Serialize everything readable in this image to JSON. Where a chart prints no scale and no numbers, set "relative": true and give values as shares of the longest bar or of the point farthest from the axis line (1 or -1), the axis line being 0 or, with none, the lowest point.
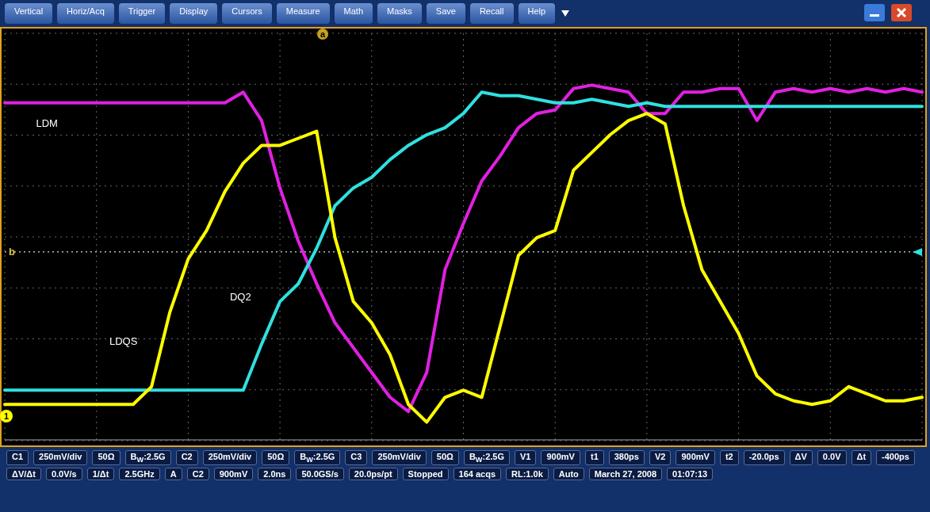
{
  "chart_data": {
    "type": "line",
    "relative": true,
    "grid": true,
    "marker": "none",
    "categories": [
      null,
      null,
      null,
      null,
      null,
      null,
      null,
      null,
      null,
      null,
      null,
      null,
      null,
      null,
      null,
      null,
      null,
      null,
      null,
      null,
      null,
      null,
      null,
      null,
      null,
      null,
      null,
      null,
      null,
      null,
      null,
      null,
      null,
      null,
      null,
      null,
      null,
      null,
      null,
      null,
      null,
      null,
      null,
      null,
      null,
      null,
      null,
      null,
      null,
      null,
      null
    ],
    "series": [
      {
        "name": "LDM",
        "color": "#e020e0",
        "values": [
          0.95,
          0.95,
          0.95,
          0.95,
          0.95,
          0.95,
          0.95,
          0.95,
          0.95,
          0.95,
          0.95,
          0.95,
          0.95,
          0.98,
          0.9,
          0.71,
          0.56,
          0.44,
          0.33,
          0.26,
          0.19,
          0.12,
          0.08,
          0.19,
          0.48,
          0.61,
          0.73,
          0.8,
          0.88,
          0.92,
          0.93,
          0.99,
          1.0,
          0.99,
          0.98,
          0.92,
          0.92,
          0.98,
          0.98,
          0.99,
          0.99,
          0.9,
          0.98,
          0.99,
          0.98,
          0.99,
          0.98,
          0.99,
          0.98,
          0.99,
          0.98
        ]
      },
      {
        "name": "DQ2",
        "color": "#30e0e0",
        "values": [
          0.14,
          0.14,
          0.14,
          0.14,
          0.14,
          0.14,
          0.14,
          0.14,
          0.14,
          0.14,
          0.14,
          0.14,
          0.14,
          0.14,
          0.27,
          0.39,
          0.44,
          0.54,
          0.66,
          0.71,
          0.74,
          0.79,
          0.83,
          0.86,
          0.88,
          0.92,
          0.98,
          0.97,
          0.97,
          0.96,
          0.95,
          0.95,
          0.96,
          0.95,
          0.94,
          0.95,
          0.94,
          0.94,
          0.94,
          0.94,
          0.94,
          0.94,
          0.94,
          0.94,
          0.94,
          0.94,
          0.94,
          0.94,
          0.94,
          0.94,
          0.94
        ]
      },
      {
        "name": "LDQS",
        "color": "#ffff00",
        "values": [
          0.1,
          0.1,
          0.1,
          0.1,
          0.1,
          0.1,
          0.1,
          0.1,
          0.15,
          0.36,
          0.51,
          0.59,
          0.7,
          0.78,
          0.83,
          0.83,
          0.85,
          0.87,
          0.57,
          0.39,
          0.33,
          0.24,
          0.1,
          0.05,
          0.12,
          0.14,
          0.12,
          0.32,
          0.52,
          0.57,
          0.59,
          0.76,
          0.81,
          0.86,
          0.9,
          0.92,
          0.89,
          0.66,
          0.48,
          0.39,
          0.3,
          0.18,
          0.13,
          0.11,
          0.1,
          0.11,
          0.15,
          0.13,
          0.11,
          0.11,
          0.12
        ]
      }
    ],
    "ref_lines": [
      {
        "axis": "y",
        "value": 0.53,
        "label": "b",
        "color": "#a0c8a0",
        "line_style": "dotted"
      }
    ],
    "annotations": [
      "Vertical",
      "Horiz/Acq",
      "Trigger",
      "Display",
      "Cursors",
      "Measure",
      "Math",
      "Masks",
      "Save",
      "Recall",
      "Help",
      "a",
      "1",
      "C1",
      "250mV/div",
      "50Ω",
      "B$_{W}$:2.5G",
      "C2",
      "250mV/div",
      "50Ω",
      "B$_{W}$:2.5G",
      "C3",
      "250mV/div",
      "50Ω",
      "B$_{W}$:2.5G",
      "V1",
      "900mV",
      "t1",
      "380ps",
      "V2",
      "900mV",
      "t2",
      "-20.0ps",
      "ΔV",
      "0.0V",
      "Δt",
      "-400ps",
      "ΔV/Δt",
      "0.0V/s",
      "1/Δt",
      "2.5GHz",
      "A",
      "C2",
      "900mV",
      "2.0ns",
      "50.0GS/s",
      "20.0ps/pt",
      "Stopped",
      "164 acqs",
      "RL:1.0k",
      "Auto",
      "March 27, 2008",
      "01:07:13"
    ]
  }
}
